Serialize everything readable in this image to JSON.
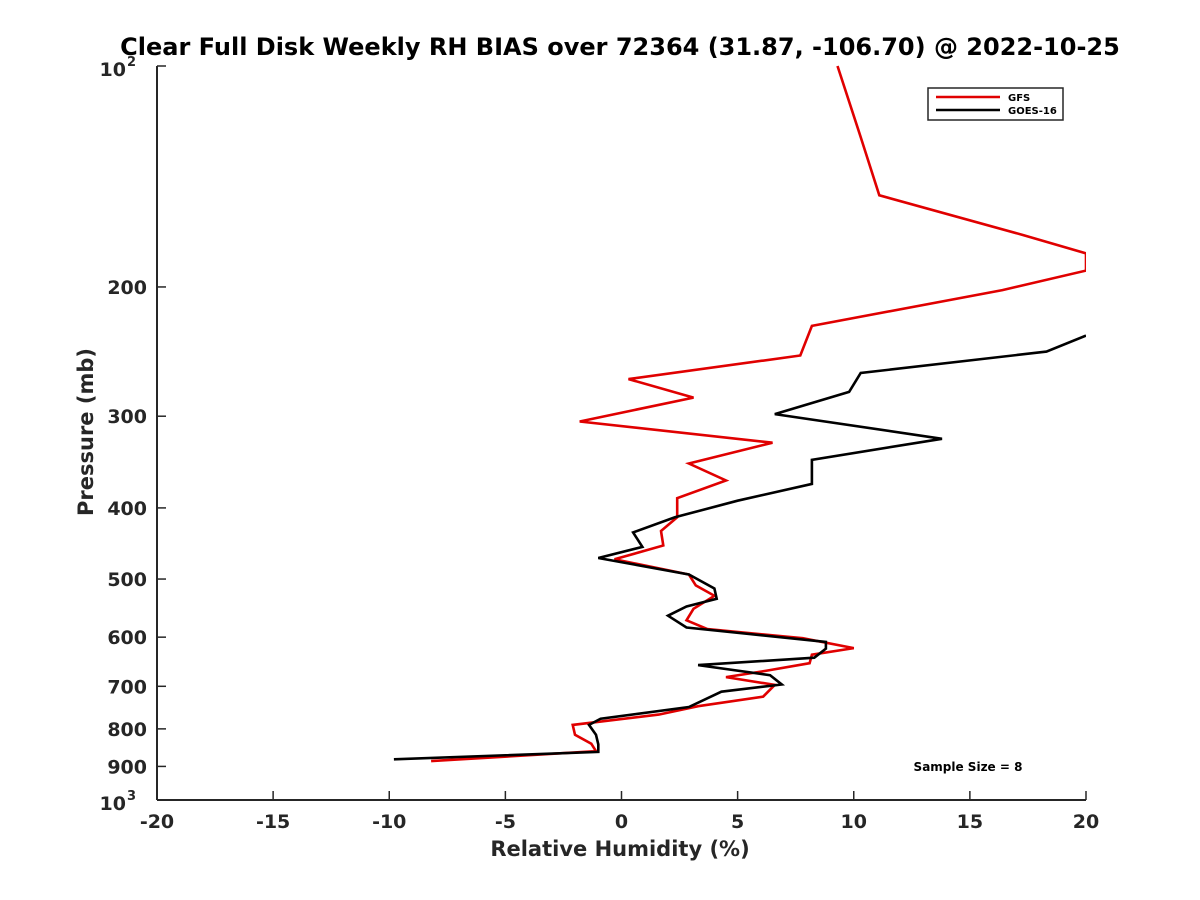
{
  "chart_data": {
    "type": "line",
    "title": "Clear Full Disk Weekly RH BIAS over 72364 (31.87, -106.70) @ 2022-10-25",
    "xlabel": "Relative Humidity (%)",
    "ylabel": "Pressure (mb)",
    "xlim": [
      -20,
      20
    ],
    "ylim": [
      100,
      1000
    ],
    "y_scale": "log",
    "y_reversed": true,
    "xticks": [
      "-20",
      "-15",
      "-10",
      "-5",
      "0",
      "5",
      "10",
      "15",
      "20"
    ],
    "yticks": [
      {
        "value": 100,
        "base": "10",
        "exp": "2"
      },
      {
        "value": 200,
        "label": "200"
      },
      {
        "value": 300,
        "label": "300"
      },
      {
        "value": 400,
        "label": "400"
      },
      {
        "value": 500,
        "label": "500"
      },
      {
        "value": 600,
        "label": "600"
      },
      {
        "value": 700,
        "label": "700"
      },
      {
        "value": 800,
        "label": "800"
      },
      {
        "value": 900,
        "label": "900"
      },
      {
        "value": 1000,
        "base": "10",
        "exp": "3"
      }
    ],
    "legend_position": "top-right",
    "grid": false,
    "annotation": "Sample Size = 8",
    "series": [
      {
        "name": "GFS",
        "color": "#e00000",
        "points": [
          [
            9.3,
            100
          ],
          [
            10.3,
            125
          ],
          [
            11.1,
            150
          ],
          [
            17.3,
            170
          ],
          [
            20.0,
            180
          ],
          [
            20.0,
            190
          ],
          [
            16.4,
            202
          ],
          [
            8.2,
            226
          ],
          [
            7.7,
            248
          ],
          [
            0.3,
            267
          ],
          [
            3.1,
            283
          ],
          [
            -1.8,
            305
          ],
          [
            6.5,
            326
          ],
          [
            2.9,
            348
          ],
          [
            4.5,
            367
          ],
          [
            2.4,
            388
          ],
          [
            2.4,
            412
          ],
          [
            1.7,
            430
          ],
          [
            1.8,
            450
          ],
          [
            -0.3,
            470
          ],
          [
            2.9,
            493
          ],
          [
            3.2,
            510
          ],
          [
            4.0,
            527
          ],
          [
            3.1,
            549
          ],
          [
            2.8,
            569
          ],
          [
            3.7,
            585
          ],
          [
            7.8,
            602
          ],
          [
            10.0,
            621
          ],
          [
            8.2,
            634
          ],
          [
            8.1,
            651
          ],
          [
            6.2,
            667
          ],
          [
            4.5,
            680
          ],
          [
            6.6,
            697
          ],
          [
            6.1,
            723
          ],
          [
            3.3,
            745
          ],
          [
            1.6,
            765
          ],
          [
            -2.1,
            790
          ],
          [
            -2.0,
            815
          ],
          [
            -1.3,
            838
          ],
          [
            -1.1,
            858
          ],
          [
            -8.2,
            885
          ]
        ]
      },
      {
        "name": "GOES-16",
        "color": "#000000",
        "points": [
          [
            20.0,
            233
          ],
          [
            18.3,
            245
          ],
          [
            10.3,
            262
          ],
          [
            9.8,
            278
          ],
          [
            6.6,
            298
          ],
          [
            13.8,
            322
          ],
          [
            8.2,
            344
          ],
          [
            8.2,
            371
          ],
          [
            5.0,
            391
          ],
          [
            2.3,
            412
          ],
          [
            0.5,
            432
          ],
          [
            0.9,
            452
          ],
          [
            -1.0,
            468
          ],
          [
            2.9,
            493
          ],
          [
            4.0,
            515
          ],
          [
            4.1,
            532
          ],
          [
            2.8,
            545
          ],
          [
            2.0,
            561
          ],
          [
            2.8,
            582
          ],
          [
            8.8,
            609
          ],
          [
            8.8,
            622
          ],
          [
            8.3,
            640
          ],
          [
            3.3,
            655
          ],
          [
            6.4,
            676
          ],
          [
            6.9,
            696
          ],
          [
            4.3,
            712
          ],
          [
            2.9,
            747
          ],
          [
            -0.9,
            775
          ],
          [
            -1.4,
            790
          ],
          [
            -1.1,
            815
          ],
          [
            -1.0,
            840
          ],
          [
            -1.0,
            860
          ],
          [
            -9.8,
            880
          ]
        ]
      }
    ]
  }
}
